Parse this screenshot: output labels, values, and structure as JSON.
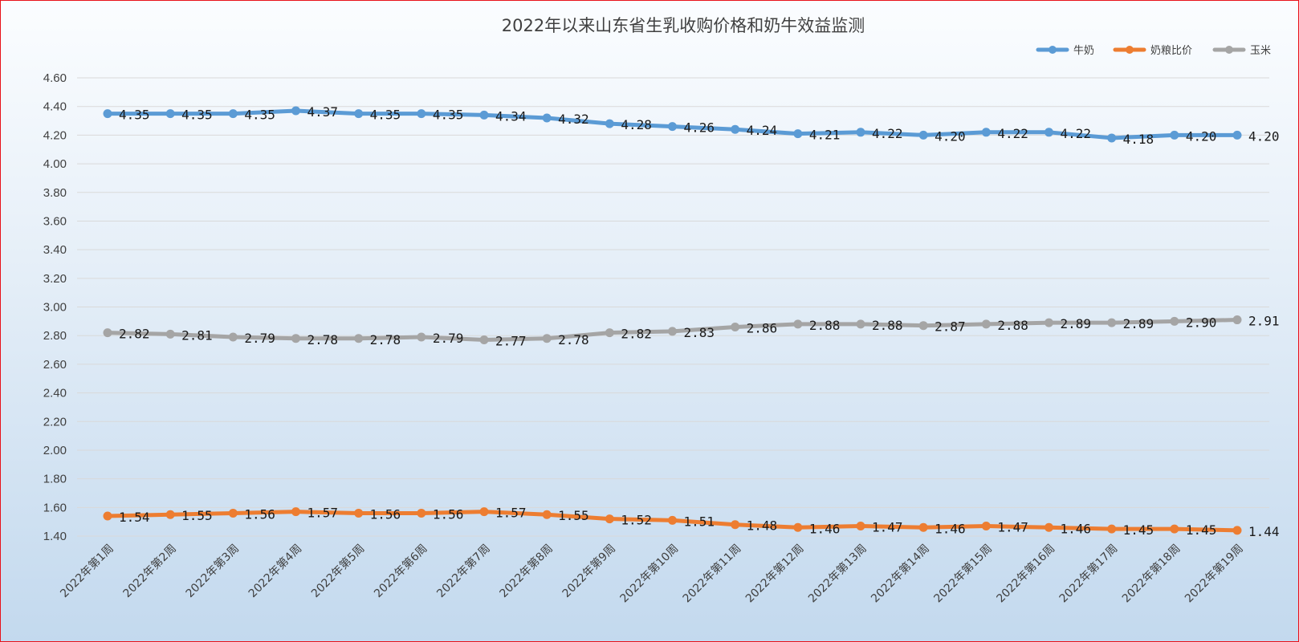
{
  "chart_data": {
    "type": "line",
    "title": "2022年以来山东省生乳收购价格和奶牛效益监测",
    "categories": [
      "2022年第1周",
      "2022年第2周",
      "2022年第3周",
      "2022年第4周",
      "2022年第5周",
      "2022年第6周",
      "2022年第7周",
      "2022年第8周",
      "2022年第9周",
      "2022年第10周",
      "2022年第11周",
      "2022年第12周",
      "2022年第13周",
      "2022年第14周",
      "2022年第15周",
      "2022年第16周",
      "2022年第17周",
      "2022年第18周",
      "2022年第19周"
    ],
    "series": [
      {
        "name": "牛奶",
        "color": "#5b9bd5",
        "values": [
          4.35,
          4.35,
          4.35,
          4.37,
          4.35,
          4.35,
          4.34,
          4.32,
          4.28,
          4.26,
          4.24,
          4.21,
          4.22,
          4.2,
          4.22,
          4.22,
          4.18,
          4.2,
          4.2
        ]
      },
      {
        "name": "奶粮比价",
        "color": "#ed7d31",
        "values": [
          1.54,
          1.55,
          1.56,
          1.57,
          1.56,
          1.56,
          1.57,
          1.55,
          1.52,
          1.51,
          1.48,
          1.46,
          1.47,
          1.46,
          1.47,
          1.46,
          1.45,
          1.45,
          1.44
        ]
      },
      {
        "name": "玉米",
        "color": "#a5a5a5",
        "values": [
          2.82,
          2.81,
          2.79,
          2.78,
          2.78,
          2.79,
          2.77,
          2.78,
          2.82,
          2.83,
          2.86,
          2.88,
          2.88,
          2.87,
          2.88,
          2.89,
          2.89,
          2.9,
          2.91
        ]
      }
    ],
    "y_ticks": [
      "1.40",
      "1.60",
      "1.80",
      "2.00",
      "2.20",
      "2.40",
      "2.60",
      "2.80",
      "3.00",
      "3.20",
      "3.40",
      "3.60",
      "3.80",
      "4.00",
      "4.20",
      "4.40",
      "4.60"
    ],
    "ylim": [
      1.4,
      4.6
    ],
    "grid": true,
    "legend_position": "top-right",
    "label_decimals": 2
  }
}
